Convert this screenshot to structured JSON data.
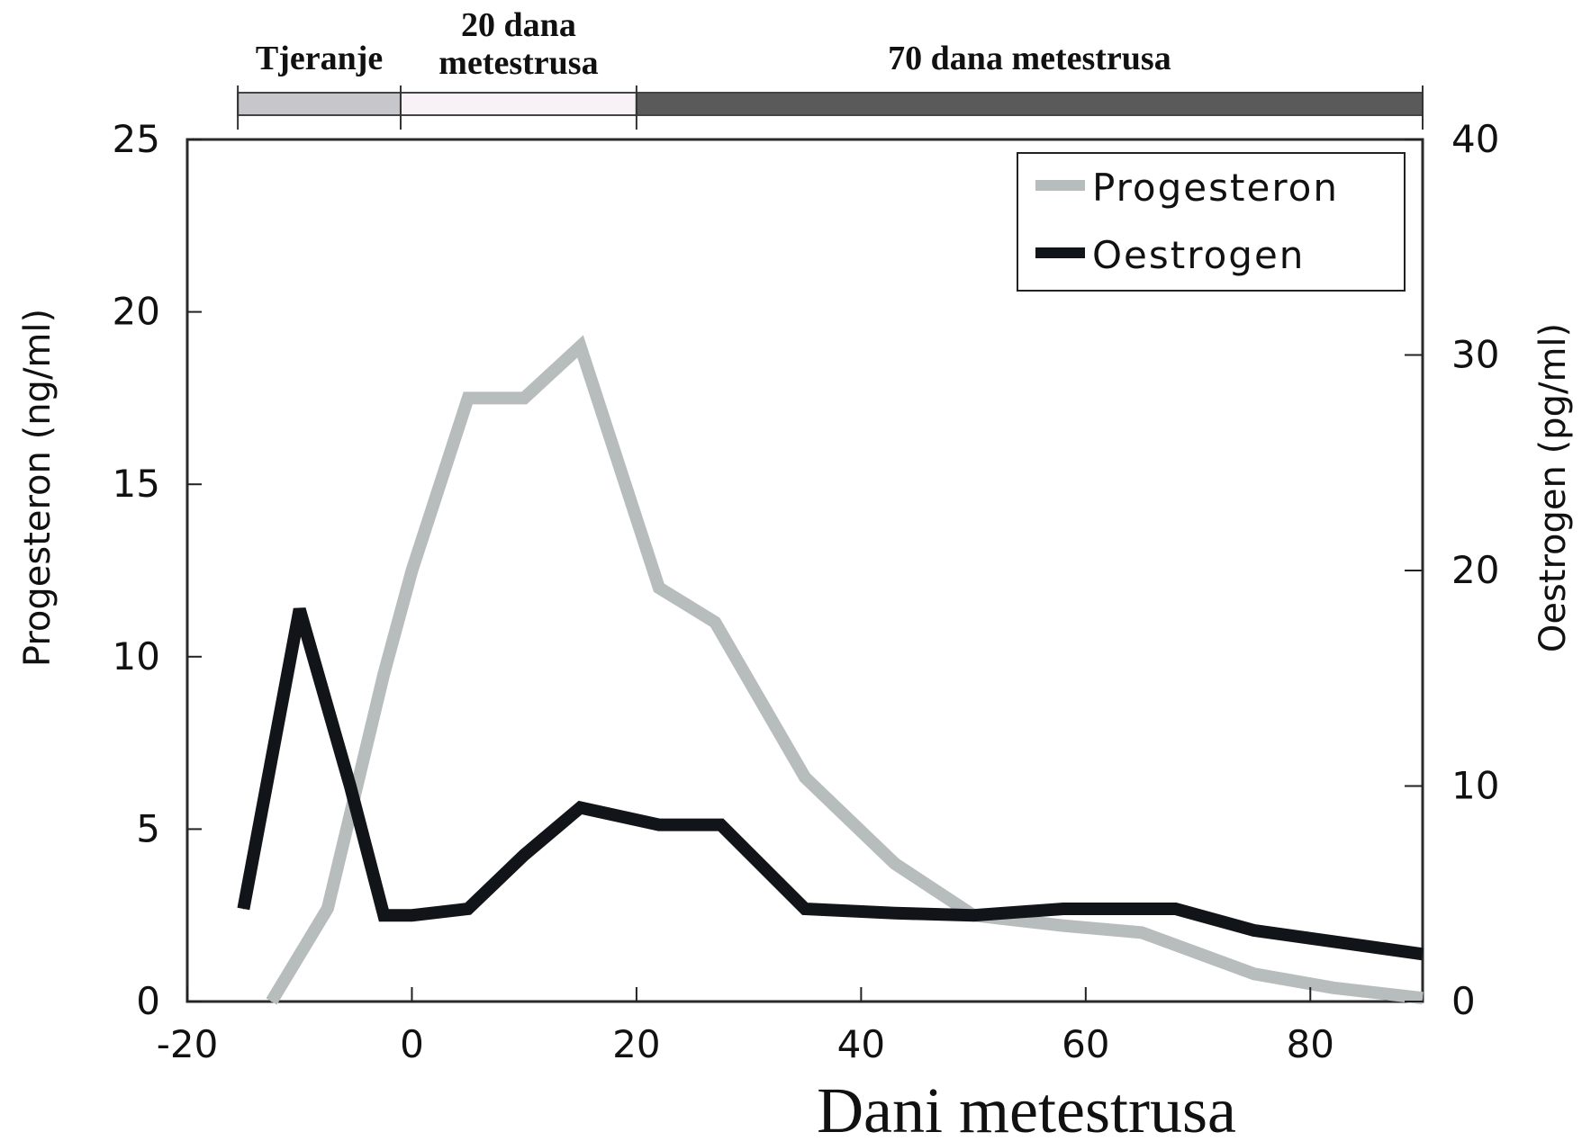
{
  "chart_data": {
    "type": "line",
    "title": "",
    "xlabel": "Dani metestrusa",
    "ylabel": "Progesteron (ng/ml)",
    "y2label": "Oestrogen (pg/ml)",
    "xlim": [
      -20,
      90
    ],
    "ylim": [
      0,
      25
    ],
    "y2lim": [
      0,
      40
    ],
    "x_ticks": [
      -20,
      0,
      20,
      40,
      60,
      80
    ],
    "y_ticks": [
      0,
      5,
      10,
      15,
      20,
      25
    ],
    "y2_ticks": [
      0,
      10,
      20,
      30,
      40
    ],
    "grid": false,
    "legend_position": "top-right",
    "series": [
      {
        "name": "Progesteron",
        "axis": "left",
        "color": "#b7bcbc",
        "x": [
          -12.5,
          -7.5,
          -2.5,
          0,
          5,
          10,
          15,
          22,
          27,
          35,
          43,
          50,
          58,
          65,
          75,
          82,
          90
        ],
        "y": [
          0,
          2.7,
          9.5,
          12.5,
          17.5,
          17.5,
          19,
          12,
          11,
          6.5,
          4,
          2.5,
          2.2,
          2,
          0.8,
          0.4,
          0.1
        ]
      },
      {
        "name": "Oestrogen",
        "axis": "right",
        "color": "#111418",
        "x": [
          -15,
          -10,
          -5.5,
          -2.5,
          0,
          5,
          10,
          15,
          22,
          27.5,
          35,
          43,
          50,
          58,
          68,
          75,
          90
        ],
        "y": [
          4.3,
          18.2,
          10,
          4,
          4,
          4.3,
          6.8,
          9,
          8.2,
          8.2,
          4.3,
          4.1,
          4,
          4.3,
          4.3,
          3.3,
          2.2
        ]
      }
    ],
    "phases": {
      "phase_ticks": [
        -15.5,
        -1,
        20,
        90
      ],
      "items": [
        {
          "label": "Tjeranje",
          "label_lines": [
            "Tjeranje"
          ],
          "start": -15.5,
          "end": -1,
          "color": "#c7c7cb"
        },
        {
          "label": "20 dana metestrusa",
          "label_lines": [
            "20 dana",
            "metestrusa"
          ],
          "start": -1,
          "end": 20,
          "color": "#f8f1f6"
        },
        {
          "label": "70 dana metestrusa",
          "label_lines": [
            "70 dana metestrusa"
          ],
          "start": 20,
          "end": 90,
          "color": "#5a5a5a"
        }
      ]
    }
  }
}
